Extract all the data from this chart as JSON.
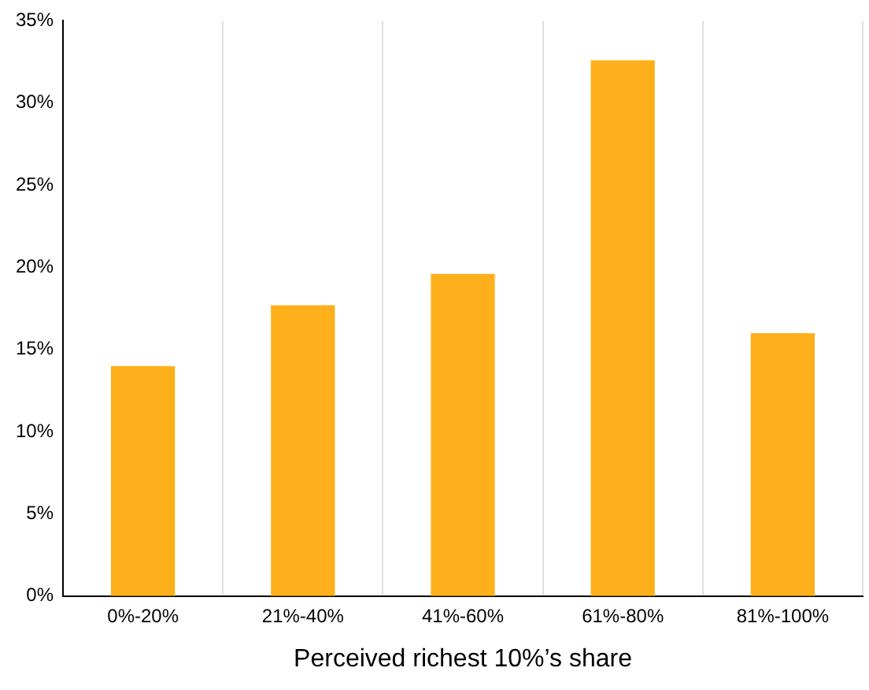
{
  "chart_data": {
    "type": "bar",
    "xlabel": "Perceived richest 10%’s share",
    "categories": [
      "0%-20%",
      "21%-40%",
      "41%-60%",
      "61%-80%",
      "81%-100%"
    ],
    "values": [
      14,
      17.7,
      19.6,
      32.6,
      16
    ],
    "color": "#fdb01b",
    "ylim": [
      0,
      35
    ],
    "yticks": [
      {
        "value": 0,
        "label": "0%"
      },
      {
        "value": 5,
        "label": "5%"
      },
      {
        "value": 10,
        "label": "10%"
      },
      {
        "value": 15,
        "label": "15%"
      },
      {
        "value": 20,
        "label": "20%"
      },
      {
        "value": 25,
        "label": "25%"
      },
      {
        "value": 30,
        "label": "30%"
      },
      {
        "value": 35,
        "label": "35%"
      }
    ],
    "grid": "x"
  }
}
